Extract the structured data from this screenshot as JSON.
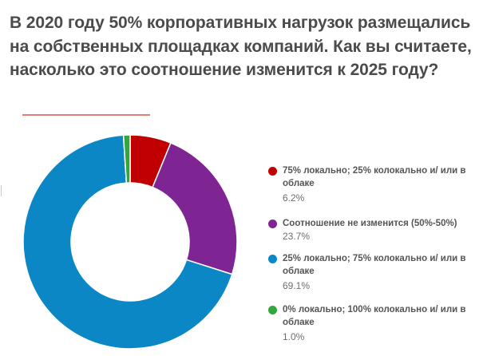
{
  "title": "В 2020 году 50% корпоративных нагрузок размещались на собственных площадках компаний. Как вы считаете, насколько это соотношение изменится к 2025 году?",
  "colors": {
    "accent_rule": "#e87c74",
    "background": "#ffffff",
    "title_text": "#4b4b4b"
  },
  "chart_data": {
    "type": "pie",
    "variant": "donut",
    "title": "",
    "legend_position": "right",
    "slices": [
      {
        "label": "75% локально; 25% колокально и/ или в облаке",
        "value": 6.2,
        "value_label": "6.2%",
        "color": "#c00000"
      },
      {
        "label": "Соотношение не изменится (50%-50%)",
        "value": 23.7,
        "value_label": "23.7%",
        "color": "#7f2493"
      },
      {
        "label": "25% локально; 75% колокально и/ или в облаке",
        "value": 69.1,
        "value_label": "69.1%",
        "color": "#0b87c6"
      },
      {
        "label": "0% локально; 100% колокально и/ или в облаке",
        "value": 1.0,
        "value_label": "1.0%",
        "color": "#34a640"
      }
    ]
  }
}
